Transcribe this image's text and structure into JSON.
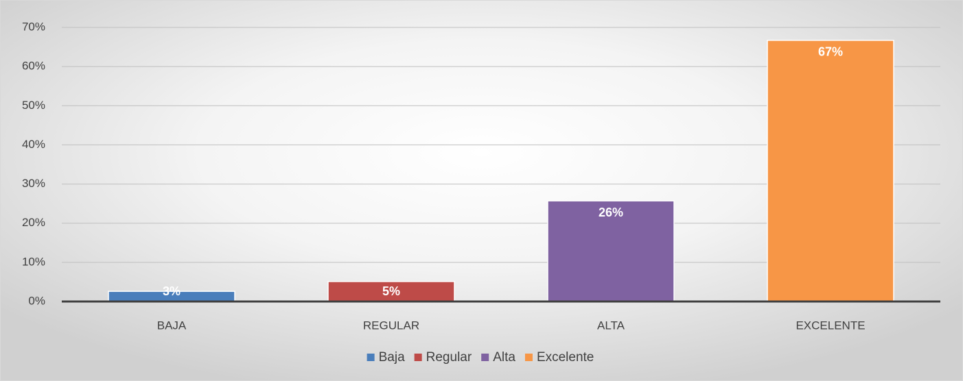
{
  "chart_data": {
    "type": "bar",
    "categories": [
      "BAJA",
      "REGULAR",
      "ALTA",
      "EXCELENTE"
    ],
    "series": [
      {
        "name": "Baja",
        "color": "#4a7ebb",
        "values": [
          2.6,
          null,
          null,
          null
        ],
        "value_labels": [
          "3%",
          null,
          null,
          null
        ]
      },
      {
        "name": "Regular",
        "color": "#be4b48",
        "values": [
          null,
          5.1,
          null,
          null
        ],
        "value_labels": [
          null,
          "5%",
          null,
          null
        ]
      },
      {
        "name": "Alta",
        "color": "#7f62a1",
        "values": [
          null,
          null,
          25.7,
          null
        ],
        "value_labels": [
          null,
          null,
          "26%",
          null
        ]
      },
      {
        "name": "Excelente",
        "color": "#f79646",
        "values": [
          null,
          null,
          null,
          66.7
        ],
        "value_labels": [
          null,
          null,
          null,
          "67%"
        ]
      }
    ],
    "ylim": [
      0,
      70
    ],
    "yticks": [
      {
        "value": 0,
        "label": "0%"
      },
      {
        "value": 10,
        "label": "10%"
      },
      {
        "value": 20,
        "label": "20%"
      },
      {
        "value": 30,
        "label": "30%"
      },
      {
        "value": 40,
        "label": "40%"
      },
      {
        "value": 50,
        "label": "50%"
      },
      {
        "value": 60,
        "label": "60%"
      },
      {
        "value": 70,
        "label": "70%"
      }
    ],
    "grid": true,
    "legend": "bottom"
  }
}
